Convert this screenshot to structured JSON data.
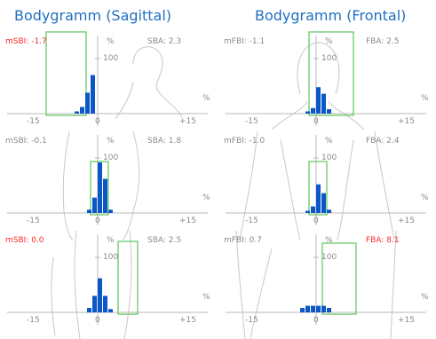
{
  "columns": [
    {
      "title": "Bodygramm (Sagittal)",
      "view": "sagittal",
      "panels": [
        {
          "m_label": "mSBI: -1.7",
          "m_alert": true,
          "s_label": "SBA: 2.3",
          "s_alert": false,
          "pct_top": "%",
          "hundred": "100",
          "pct_right": "%",
          "x_min": "-15",
          "x_mid": "0",
          "x_max": "+15",
          "bars": [
            4,
            12,
            38,
            70
          ],
          "box": "left"
        },
        {
          "m_label": "mSBI: -0.1",
          "m_alert": false,
          "s_label": "SBA: 1.8",
          "s_alert": false,
          "pct_top": "%",
          "hundred": "100",
          "pct_right": "%",
          "x_min": "-15",
          "x_mid": "0",
          "x_max": "+15",
          "bars": [
            6,
            28,
            92,
            62,
            6
          ],
          "box": "center"
        },
        {
          "m_label": "mSBI: 0.0",
          "m_alert": true,
          "s_label": "SBA: 2.5",
          "s_alert": false,
          "pct_top": "%",
          "hundred": "100",
          "pct_right": "%",
          "x_min": "-15",
          "x_mid": "0",
          "x_max": "+15",
          "bars": [
            8,
            30,
            62,
            30,
            6
          ],
          "box": "right"
        }
      ]
    },
    {
      "title": "Bodygramm (Frontal)",
      "view": "frontal",
      "panels": [
        {
          "m_label": "mFBI: -1.1",
          "m_alert": false,
          "s_label": "FBA: 2.5",
          "s_alert": false,
          "pct_top": "%",
          "hundred": "100",
          "pct_right": "%",
          "x_min": "-15",
          "x_mid": "0",
          "x_max": "+15",
          "bars": [
            4,
            10,
            48,
            36,
            8
          ],
          "box": "wide"
        },
        {
          "m_label": "mFBI: -1.0",
          "m_alert": false,
          "s_label": "FBA: 2.4",
          "s_alert": false,
          "pct_top": "%",
          "hundred": "100",
          "pct_right": "%",
          "x_min": "-15",
          "x_mid": "0",
          "x_max": "+15",
          "bars": [
            4,
            12,
            52,
            36,
            6
          ],
          "box": "center"
        },
        {
          "m_label": "mFBI: 0.7",
          "m_alert": false,
          "s_label": "FBA: 8.1",
          "s_alert": true,
          "pct_top": "%",
          "hundred": "100",
          "pct_right": "%",
          "x_min": "-15",
          "x_mid": "0",
          "x_max": "+15",
          "bars": [
            8,
            12,
            12,
            12,
            12,
            8
          ],
          "box": "center-wide"
        }
      ]
    }
  ],
  "colors": {
    "title": "#1f6fbf",
    "bar": "#0b57c7",
    "box": "#5cc45c",
    "axis": "#b8b8b8",
    "body": "#c8c8c8",
    "alert": "#ff2a2a",
    "text": "#8a8a8a"
  }
}
